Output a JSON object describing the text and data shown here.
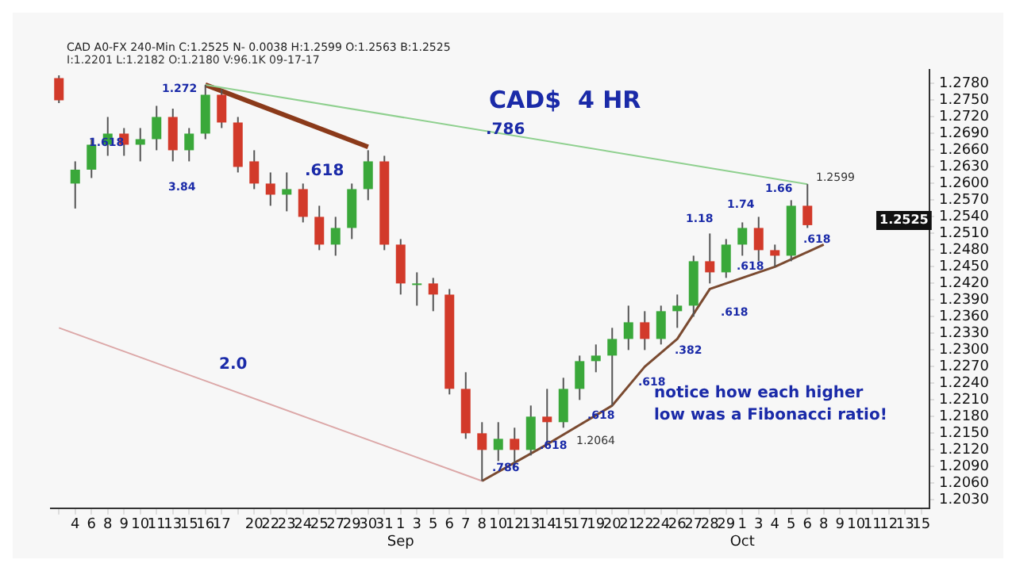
{
  "chart_data": {
    "type": "candlestick",
    "title": "CAD$  4 HR",
    "subtitle": "CAD A0-FX 240-Min C:1.2525 N- 0.0038 H:1.2599 O:1.2563 B:1.2525",
    "categories": [
      null,
      "4",
      "6",
      "8",
      "9",
      "10",
      "11",
      "13",
      "15",
      "16",
      "17",
      null,
      "20",
      "22",
      "23",
      "24",
      "25",
      "27",
      "29",
      "30",
      "31",
      "1\nSep",
      "3",
      "5",
      "6",
      "7",
      "8",
      "10",
      "12",
      "13",
      "14",
      "15",
      "17",
      "19",
      "20",
      "21",
      "22",
      "24",
      "26",
      "27",
      "28",
      "29",
      "1\nOct",
      "3",
      "4",
      "5",
      "6",
      "8",
      "9",
      "10",
      "11",
      "12",
      "13",
      "15"
    ],
    "ohlc": [
      [
        1.279,
        1.2795,
        1.2745,
        1.275
      ],
      [
        1.26,
        1.264,
        1.2555,
        1.2625
      ],
      [
        1.2625,
        1.268,
        1.261,
        1.267
      ],
      [
        1.267,
        1.272,
        1.265,
        1.269
      ],
      [
        1.269,
        1.27,
        1.265,
        1.267
      ],
      [
        1.267,
        1.27,
        1.264,
        1.268
      ],
      [
        1.268,
        1.274,
        1.266,
        1.272
      ],
      [
        1.272,
        1.2735,
        1.264,
        1.266
      ],
      [
        1.266,
        1.27,
        1.264,
        1.269
      ],
      [
        1.269,
        1.2778,
        1.268,
        1.276
      ],
      [
        1.276,
        1.277,
        1.27,
        1.271
      ],
      [
        1.271,
        1.272,
        1.262,
        1.263
      ],
      [
        1.264,
        1.266,
        1.259,
        1.26
      ],
      [
        1.26,
        1.262,
        1.256,
        1.258
      ],
      [
        1.258,
        1.262,
        1.255,
        1.259
      ],
      [
        1.259,
        1.26,
        1.253,
        1.254
      ],
      [
        1.254,
        1.256,
        1.248,
        1.249
      ],
      [
        1.249,
        1.254,
        1.247,
        1.252
      ],
      [
        1.252,
        1.26,
        1.25,
        1.259
      ],
      [
        1.259,
        1.266,
        1.257,
        1.264
      ],
      [
        1.264,
        1.265,
        1.248,
        1.249
      ],
      [
        1.249,
        1.25,
        1.24,
        1.242
      ],
      [
        1.242,
        1.244,
        1.238,
        1.242
      ],
      [
        1.242,
        1.243,
        1.237,
        1.24
      ],
      [
        1.24,
        1.241,
        1.222,
        1.223
      ],
      [
        1.223,
        1.226,
        1.214,
        1.215
      ],
      [
        1.215,
        1.217,
        1.2064,
        1.212
      ],
      [
        1.212,
        1.217,
        1.21,
        1.214
      ],
      [
        1.214,
        1.216,
        1.209,
        1.212
      ],
      [
        1.212,
        1.22,
        1.211,
        1.218
      ],
      [
        1.218,
        1.223,
        1.213,
        1.217
      ],
      [
        1.217,
        1.225,
        1.216,
        1.223
      ],
      [
        1.223,
        1.229,
        1.221,
        1.228
      ],
      [
        1.228,
        1.231,
        1.226,
        1.229
      ],
      [
        1.229,
        1.234,
        1.22,
        1.232
      ],
      [
        1.232,
        1.238,
        1.23,
        1.235
      ],
      [
        1.235,
        1.237,
        1.23,
        1.232
      ],
      [
        1.232,
        1.238,
        1.231,
        1.237
      ],
      [
        1.237,
        1.24,
        1.234,
        1.238
      ],
      [
        1.238,
        1.247,
        1.236,
        1.246
      ],
      [
        1.246,
        1.251,
        1.242,
        1.244
      ],
      [
        1.244,
        1.25,
        1.243,
        1.249
      ],
      [
        1.249,
        1.253,
        1.247,
        1.252
      ],
      [
        1.252,
        1.254,
        1.246,
        1.248
      ],
      [
        1.248,
        1.249,
        1.245,
        1.247
      ],
      [
        1.247,
        1.257,
        1.246,
        1.256
      ],
      [
        1.256,
        1.2599,
        1.252,
        1.2525
      ],
      null,
      null,
      null,
      null,
      null,
      null,
      null
    ],
    "series": [
      {
        "type": "line",
        "color": "#8fd08f",
        "values": [
          null,
          null,
          null,
          null,
          null,
          null,
          null,
          null,
          null,
          1.2778,
          null,
          null,
          null,
          null,
          null,
          null,
          null,
          null,
          null,
          null,
          null,
          null,
          null,
          null,
          null,
          null,
          null,
          null,
          null,
          null,
          null,
          null,
          null,
          null,
          null,
          null,
          null,
          null,
          null,
          null,
          null,
          null,
          null,
          null,
          null,
          null,
          1.2599,
          null,
          null,
          null,
          null,
          null,
          null,
          null
        ]
      },
      {
        "type": "line",
        "color": "#8b3a1a",
        "values": [
          null,
          null,
          null,
          null,
          null,
          null,
          null,
          null,
          null,
          1.2778,
          null,
          null,
          null,
          null,
          null,
          null,
          null,
          null,
          null,
          1.2666,
          null,
          null,
          null,
          null,
          null,
          null,
          null,
          null,
          null,
          null,
          null,
          null,
          null,
          null,
          null,
          null,
          null,
          null,
          null,
          null,
          null,
          null,
          null,
          null,
          null,
          null,
          null,
          null,
          null,
          null,
          null,
          null,
          null,
          null
        ]
      },
      {
        "type": "line",
        "color": "#dca8a8",
        "values": [
          1.234,
          null,
          null,
          null,
          null,
          null,
          null,
          null,
          null,
          null,
          null,
          null,
          null,
          null,
          null,
          null,
          null,
          null,
          null,
          null,
          null,
          null,
          null,
          null,
          null,
          null,
          1.2064,
          null,
          null,
          null,
          null,
          null,
          null,
          null,
          null,
          null,
          null,
          null,
          null,
          null,
          null,
          null,
          null,
          null,
          null,
          null,
          null,
          null,
          null,
          null,
          null,
          null,
          null,
          null
        ]
      },
      {
        "type": "line",
        "color": "#7a4a30",
        "values": [
          null,
          null,
          null,
          null,
          null,
          null,
          null,
          null,
          null,
          null,
          null,
          null,
          null,
          null,
          null,
          null,
          null,
          null,
          null,
          null,
          null,
          null,
          null,
          null,
          null,
          null,
          1.2064,
          null,
          null,
          null,
          1.213,
          null,
          null,
          null,
          1.22,
          null,
          1.227,
          null,
          1.232,
          null,
          1.241,
          null,
          null,
          null,
          1.245,
          null,
          null,
          1.249,
          null,
          null,
          null,
          null,
          null,
          null
        ]
      }
    ],
    "ylim": [
      1.2015,
      1.2805
    ],
    "yticks": [
      {
        "value": 1.203,
        "label": "1.2030"
      },
      {
        "value": 1.206,
        "label": "1.2060"
      },
      {
        "value": 1.209,
        "label": "1.2090"
      },
      {
        "value": 1.212,
        "label": "1.2120"
      },
      {
        "value": 1.215,
        "label": "1.2150"
      },
      {
        "value": 1.218,
        "label": "1.2180"
      },
      {
        "value": 1.221,
        "label": "1.2210"
      },
      {
        "value": 1.224,
        "label": "1.2240"
      },
      {
        "value": 1.227,
        "label": "1.2270"
      },
      {
        "value": 1.23,
        "label": "1.2300"
      },
      {
        "value": 1.233,
        "label": "1.2330"
      },
      {
        "value": 1.236,
        "label": "1.2360"
      },
      {
        "value": 1.239,
        "label": "1.2390"
      },
      {
        "value": 1.242,
        "label": "1.2420"
      },
      {
        "value": 1.245,
        "label": "1.2450"
      },
      {
        "value": 1.248,
        "label": "1.2480"
      },
      {
        "value": 1.251,
        "label": "1.2510"
      },
      {
        "value": 1.254,
        "label": "1.2540"
      },
      {
        "value": 1.257,
        "label": "1.2570"
      },
      {
        "value": 1.26,
        "label": "1.2600"
      },
      {
        "value": 1.263,
        "label": "1.2630"
      },
      {
        "value": 1.266,
        "label": "1.2660"
      },
      {
        "value": 1.269,
        "label": "1.2690"
      },
      {
        "value": 1.272,
        "label": "1.2720"
      },
      {
        "value": 1.275,
        "label": "1.2750"
      },
      {
        "value": 1.278,
        "label": "1.2780"
      }
    ],
    "grid": false,
    "legend": false,
    "marker": "none",
    "annotations": [
      "I:1.2201 L:1.2182 O:1.2180 V:96.1K 09-17-17",
      ".618",
      ".786",
      "2.0",
      "notice how each higher\nlow was a Fibonacci ratio!",
      ".786",
      ".618",
      ".618",
      ".618",
      ".382",
      ".618",
      ".618",
      ".618",
      "1.2599",
      "1.2064",
      "1.618",
      "1.272",
      "3.84",
      "1.18",
      "1.74",
      "1.66",
      "1.2525"
    ]
  }
}
